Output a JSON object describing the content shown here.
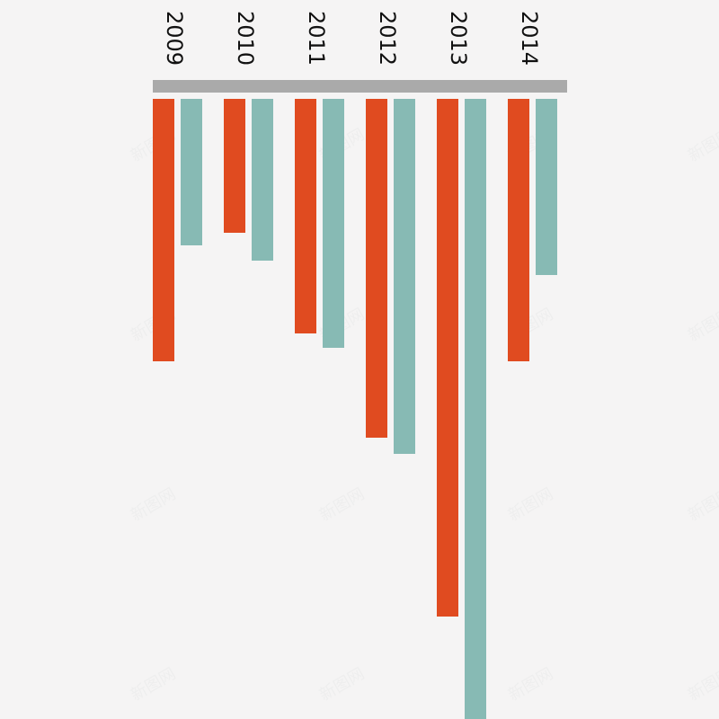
{
  "colors": {
    "background": "#f5f4f4",
    "baseline": "#aaaaaa",
    "series_a": "#e04b20",
    "series_b": "#87bab4",
    "text": "#111111"
  },
  "watermark": {
    "text": "新图网"
  },
  "chart_data": {
    "type": "bar",
    "orientation": "downward",
    "categories": [
      "2009",
      "2010",
      "2011",
      "2012",
      "2013",
      "2014"
    ],
    "series": [
      {
        "color": "#e04b20",
        "values": [
          292,
          149,
          261,
          377,
          576,
          292
        ]
      },
      {
        "color": "#87bab4",
        "values": [
          163,
          180,
          277,
          395,
          690,
          196
        ]
      }
    ],
    "title": "",
    "xlabel": "",
    "ylabel": "",
    "ylim": [
      0,
      690
    ],
    "grid": false,
    "legend": "none",
    "tick_label_rotation": "vertical"
  }
}
